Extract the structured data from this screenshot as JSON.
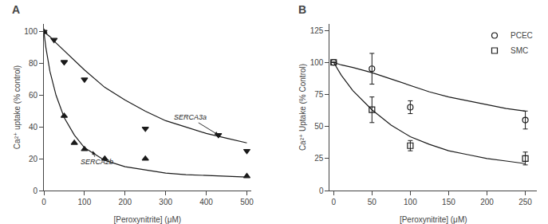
{
  "chart_data": [
    {
      "type": "line",
      "title": "A",
      "xlabel": "[Peroxynitrite] (μM)",
      "ylabel": "Ca²⁺ uptake (% control)",
      "xlim": [
        0,
        510
      ],
      "ylim": [
        0,
        105
      ],
      "xticks": [
        0,
        100,
        200,
        300,
        400,
        500
      ],
      "yticks": [
        0,
        20,
        40,
        60,
        80,
        100
      ],
      "grid": false,
      "series": [
        {
          "type": "line",
          "line_style": "solid",
          "color": "#1a1a1a",
          "x": [
            0,
            5,
            15,
            30,
            50,
            75,
            100,
            150,
            200,
            250,
            300,
            350,
            400,
            450,
            500
          ],
          "values": [
            100,
            99,
            97,
            93,
            88,
            82,
            76,
            65,
            57,
            50,
            44,
            40,
            36,
            33,
            30
          ]
        },
        {
          "type": "line",
          "line_style": "solid",
          "color": "#1a1a1a",
          "x": [
            0,
            5,
            15,
            30,
            50,
            75,
            100,
            150,
            200,
            250,
            300,
            350,
            400,
            450,
            500
          ],
          "values": [
            100,
            90,
            75,
            60,
            46,
            35,
            27,
            19,
            15,
            13,
            11,
            10,
            9.5,
            9,
            8.5
          ]
        },
        {
          "type": "scatter",
          "marker": "triangle-down",
          "color": "#1a1a1a",
          "x": [
            0,
            25,
            50,
            50,
            100,
            250,
            430,
            500
          ],
          "values": [
            100,
            95,
            81,
            81,
            70,
            39,
            35,
            25
          ]
        },
        {
          "type": "scatter",
          "marker": "triangle-up",
          "color": "#1a1a1a",
          "x": [
            0,
            50,
            75,
            100,
            150,
            250,
            500
          ],
          "values": [
            100,
            47,
            30,
            26,
            20,
            20,
            9
          ]
        }
      ],
      "annotations": [
        {
          "text": "SERCA3a",
          "x": 430,
          "y": 35,
          "text_x": 360,
          "text_y": 46
        },
        {
          "text": "SERCA2b",
          "x": 120,
          "y": 25,
          "text_x": 130,
          "text_y": 18
        }
      ]
    },
    {
      "type": "line",
      "title": "B",
      "xlabel": "[Peroxynitrite] (μM)",
      "ylabel": "Ca²⁺ Uptake (% Control)",
      "xlim": [
        -5,
        265
      ],
      "ylim": [
        0,
        130
      ],
      "xticks": [
        0,
        50,
        100,
        150,
        200,
        250
      ],
      "yticks": [
        0,
        25,
        50,
        75,
        100,
        125
      ],
      "grid": false,
      "legend": "upper right",
      "series": [
        {
          "type": "line",
          "line_style": "solid",
          "color": "#1a1a1a",
          "x": [
            0,
            5,
            10,
            25,
            50,
            75,
            100,
            125,
            150,
            175,
            200,
            225,
            250
          ],
          "values": [
            100,
            99,
            98,
            96,
            92,
            87,
            82,
            77,
            73,
            70,
            67,
            64,
            62
          ]
        },
        {
          "type": "line",
          "line_style": "solid",
          "color": "#1a1a1a",
          "x": [
            0,
            5,
            10,
            25,
            50,
            75,
            100,
            125,
            150,
            175,
            200,
            225,
            250
          ],
          "values": [
            100,
            95,
            90,
            78,
            63,
            51,
            42,
            36,
            31,
            28,
            25,
            23,
            21
          ]
        },
        {
          "type": "scatter",
          "name": "PCEC",
          "marker": "circle-open",
          "color": "#1a1a1a",
          "x": [
            0,
            50,
            100,
            250
          ],
          "values": [
            100,
            95,
            65,
            55
          ],
          "error": [
            0,
            12,
            5,
            7
          ]
        },
        {
          "type": "scatter",
          "name": "SMC",
          "marker": "square-open",
          "color": "#1a1a1a",
          "x": [
            0,
            50,
            100,
            250
          ],
          "values": [
            100,
            63,
            35,
            25
          ],
          "error": [
            0,
            10,
            4,
            5
          ]
        }
      ]
    }
  ]
}
